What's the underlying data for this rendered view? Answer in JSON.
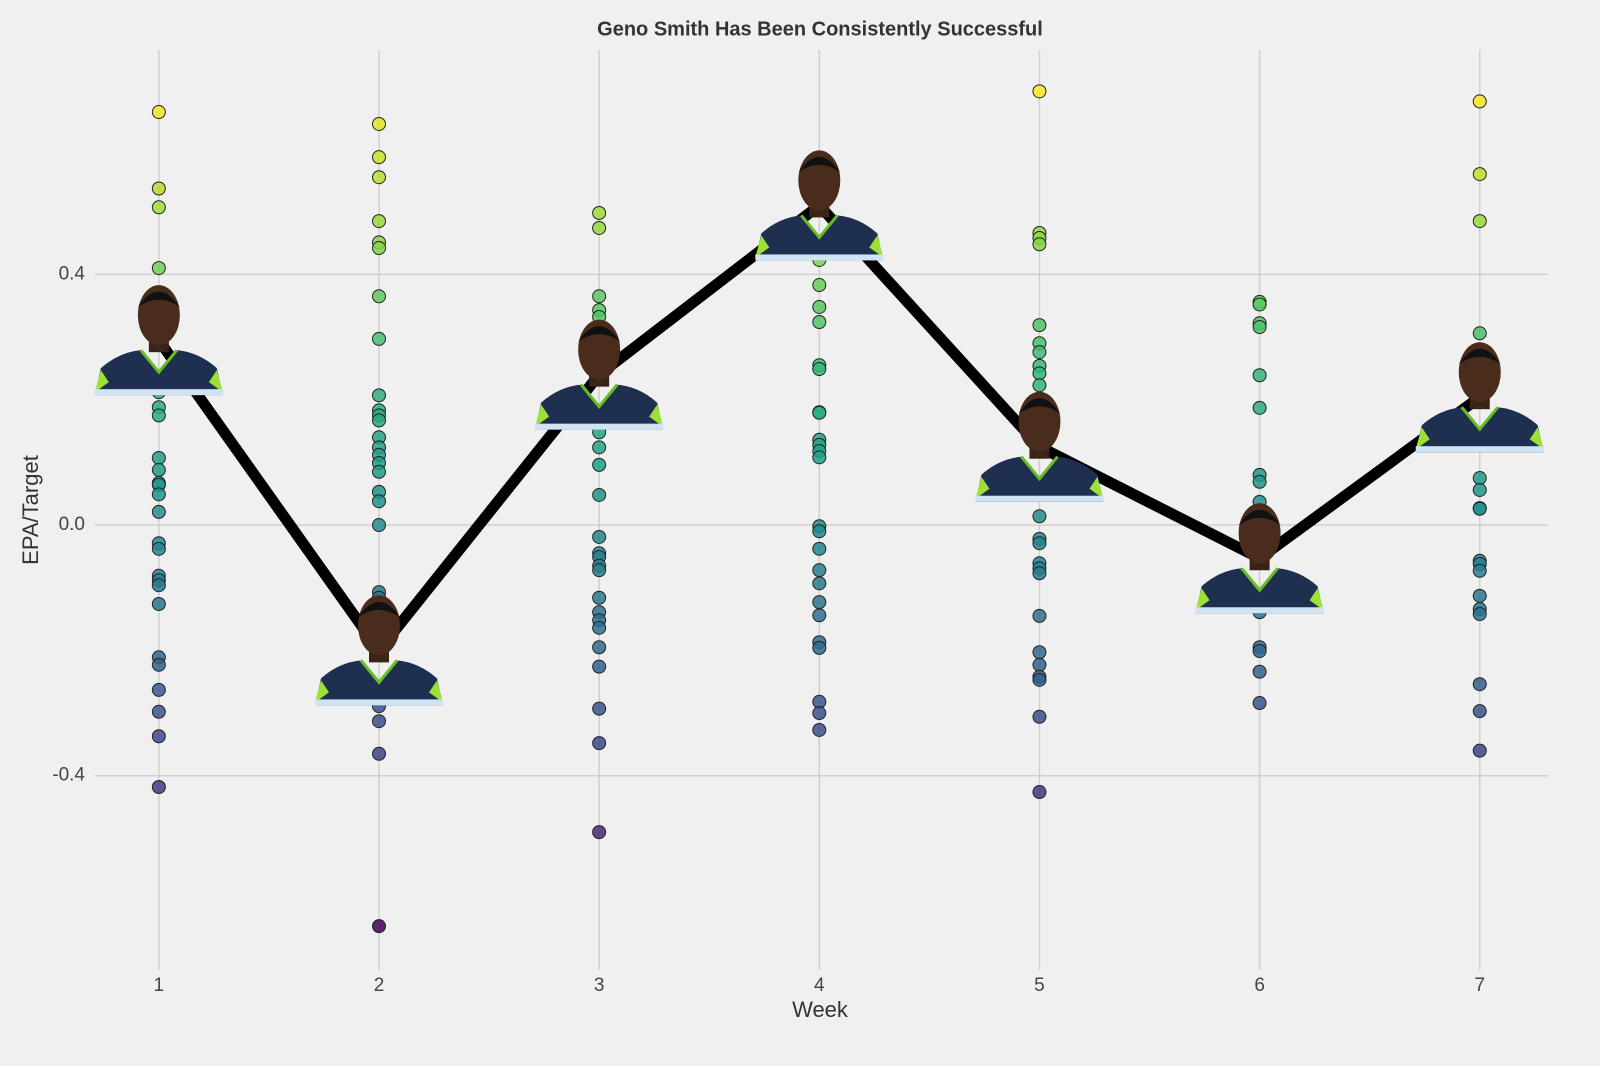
{
  "chart_data": {
    "type": "scatter",
    "title": "Geno Smith Has Been Consistently Successful",
    "x_label": "Week",
    "y_label": "EPA/Target",
    "xlim": [
      0.71,
      7.31
    ],
    "ylim": [
      -0.71,
      0.758
    ],
    "xticks": [
      1,
      2,
      3,
      4,
      5,
      6,
      7
    ],
    "yticks": [
      {
        "value": -0.4,
        "label": "-0.4"
      },
      {
        "value": 0,
        "label": "0.0"
      },
      {
        "value": 0.4,
        "label": "0.4"
      }
    ],
    "grid": true,
    "colormap": "viridis",
    "groups": [
      {
        "x": 1,
        "values": [
          0.659,
          0.537,
          0.507,
          0.41,
          0.212,
          0.188,
          0.175,
          0.107,
          0.088,
          0.067,
          0.064,
          0.049,
          0.021,
          -0.029,
          -0.038,
          -0.081,
          -0.088,
          -0.096,
          -0.126,
          -0.211,
          -0.223,
          -0.263,
          -0.298,
          -0.337,
          -0.418
        ]
      },
      {
        "x": 2,
        "values": [
          0.64,
          0.587,
          0.555,
          0.485,
          0.451,
          0.442,
          0.365,
          0.297,
          0.207,
          0.183,
          0.175,
          0.167,
          0.14,
          0.124,
          0.112,
          0.099,
          0.085,
          0.053,
          0.038,
          0,
          -0.107,
          -0.116,
          -0.289,
          -0.313,
          -0.365,
          -0.64
        ]
      },
      {
        "x": 3,
        "values": [
          0.498,
          0.474,
          0.365,
          0.343,
          0.332,
          0.167,
          0.148,
          0.124,
          0.096,
          0.048,
          -0.019,
          -0.045,
          -0.051,
          -0.065,
          -0.072,
          -0.116,
          -0.139,
          -0.152,
          -0.164,
          -0.195,
          -0.226,
          -0.293,
          -0.348,
          -0.49
        ]
      },
      {
        "x": 4,
        "values": [
          0.423,
          0.383,
          0.348,
          0.324,
          0.255,
          0.249,
          0.18,
          0.179,
          0.136,
          0.128,
          0.118,
          0.108,
          -0.002,
          -0.01,
          -0.038,
          -0.072,
          -0.093,
          -0.123,
          -0.144,
          -0.187,
          -0.196,
          -0.282,
          -0.3,
          -0.327
        ]
      },
      {
        "x": 5,
        "values": [
          0.692,
          0.466,
          0.458,
          0.448,
          0.319,
          0.29,
          0.276,
          0.254,
          0.242,
          0.223,
          0.014,
          -0.022,
          -0.029,
          -0.061,
          -0.069,
          -0.077,
          -0.145,
          -0.203,
          -0.223,
          -0.242,
          -0.247,
          -0.306,
          -0.426
        ]
      },
      {
        "x": 6,
        "values": [
          0.356,
          0.352,
          0.322,
          0.316,
          0.239,
          0.187,
          0.08,
          0.069,
          0.037,
          -0.139,
          -0.195,
          -0.201,
          -0.234,
          -0.284
        ]
      },
      {
        "x": 7,
        "values": [
          0.676,
          0.56,
          0.485,
          0.306,
          0.075,
          0.056,
          0.027,
          0.026,
          -0.057,
          -0.062,
          -0.073,
          -0.113,
          -0.134,
          -0.142,
          -0.254,
          -0.297,
          -0.36
        ]
      }
    ],
    "line": {
      "x": [
        1,
        2,
        3,
        4,
        5,
        6,
        7
      ],
      "values": [
        0.295,
        -0.2,
        0.24,
        0.51,
        0.125,
        -0.053,
        0.204
      ],
      "color": "#000000"
    }
  }
}
